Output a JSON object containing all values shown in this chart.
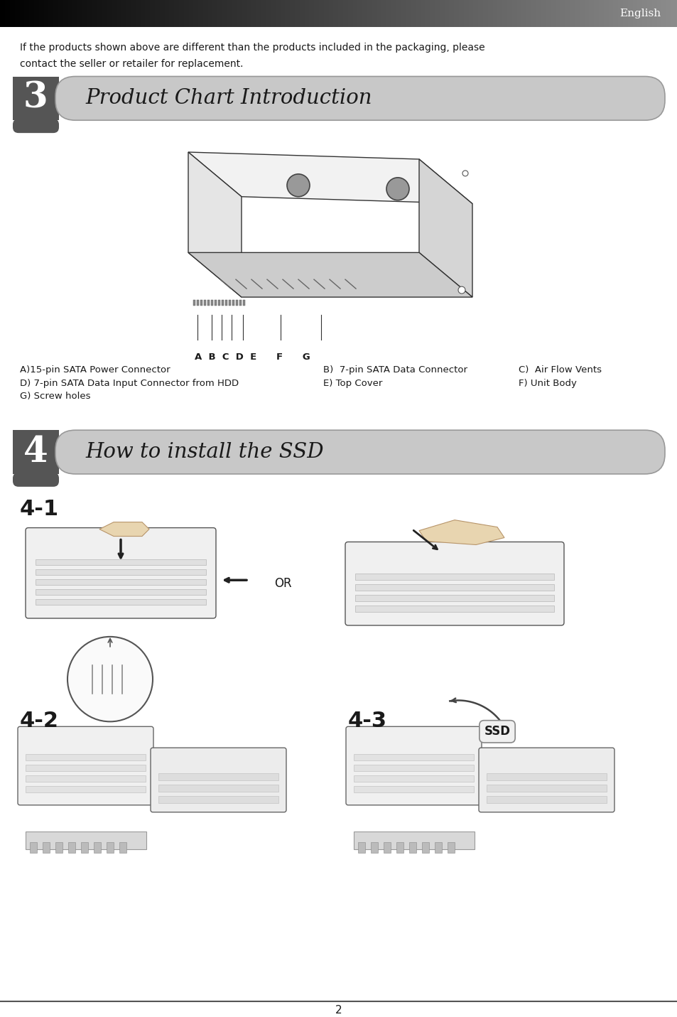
{
  "page_bg": "#ffffff",
  "header_text": "English",
  "header_text_color": "#ffffff",
  "intro_text_line1": "If the products shown above are different than the products included in the packaging, please",
  "intro_text_line2": "contact the seller or retailer for replacement.",
  "section3_number": "3",
  "section3_title": "Product Chart Introduction",
  "section3_badge_color": "#555555",
  "section3_bar_color": "#c8c8c8",
  "section4_number": "4",
  "section4_title": "How to install the SSD",
  "section4_badge_color": "#555555",
  "section4_bar_color": "#c8c8c8",
  "labels_row": "A  B  C  D  E      F      G",
  "caption_col1_line1": "A)15-pin SATA Power Connector",
  "caption_col1_line2": "D) 7-pin SATA Data Input Connector from HDD",
  "caption_col1_line3": "G) Screw holes",
  "caption_col2_line1": "B)  7-pin SATA Data Connector",
  "caption_col2_line2": "E) Top Cover",
  "caption_col3_line1": "C)  Air Flow Vents",
  "caption_col3_line2": "F) Unit Body",
  "step41_label": "4-1",
  "step42_label": "4-2",
  "step43_label": "4-3",
  "or_text": "OR",
  "page_number": "2",
  "font_color": "#1a1a1a"
}
